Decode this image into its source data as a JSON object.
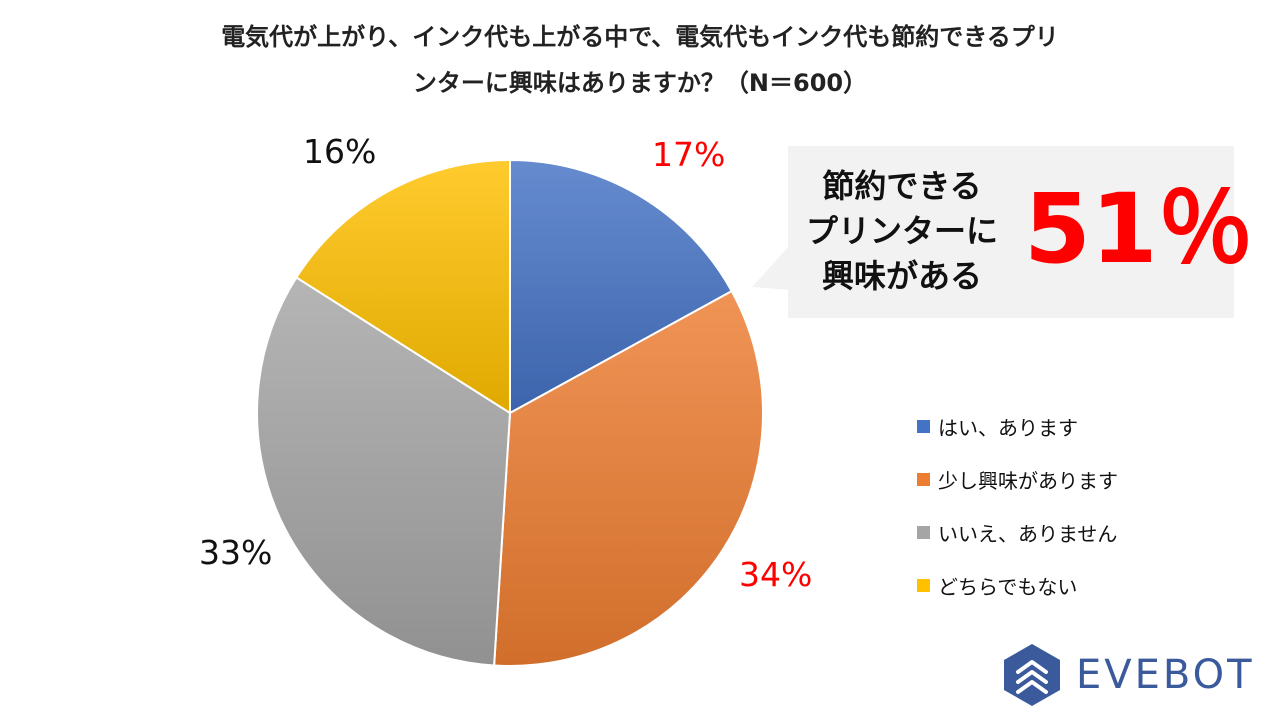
{
  "chart_data": {
    "type": "pie",
    "title_lines": [
      "電気代が上がり、インク代も上がる中で、電気代もインク代も節約できるプリ",
      "ンターに興味はありますか？（N＝600）"
    ],
    "categories": [
      "はい、あります",
      "少し興味があります",
      "いいえ、ありません",
      "どちらでもない"
    ],
    "values": [
      17,
      34,
      33,
      16
    ],
    "labels": [
      "17%",
      "34%",
      "33%",
      "16%"
    ],
    "label_colors": [
      "#ff0000",
      "#ff0000",
      "#111111",
      "#111111"
    ],
    "colors": [
      "#4472c4",
      "#ed7d31",
      "#a5a5a5",
      "#ffc000"
    ],
    "legend_position": "right"
  },
  "callout": {
    "lines": [
      "節約できる",
      "プリンターに",
      "興味がある"
    ],
    "big_value": "51％"
  },
  "logo": {
    "text": "EVEBOT",
    "color": "#3a5a9c"
  }
}
